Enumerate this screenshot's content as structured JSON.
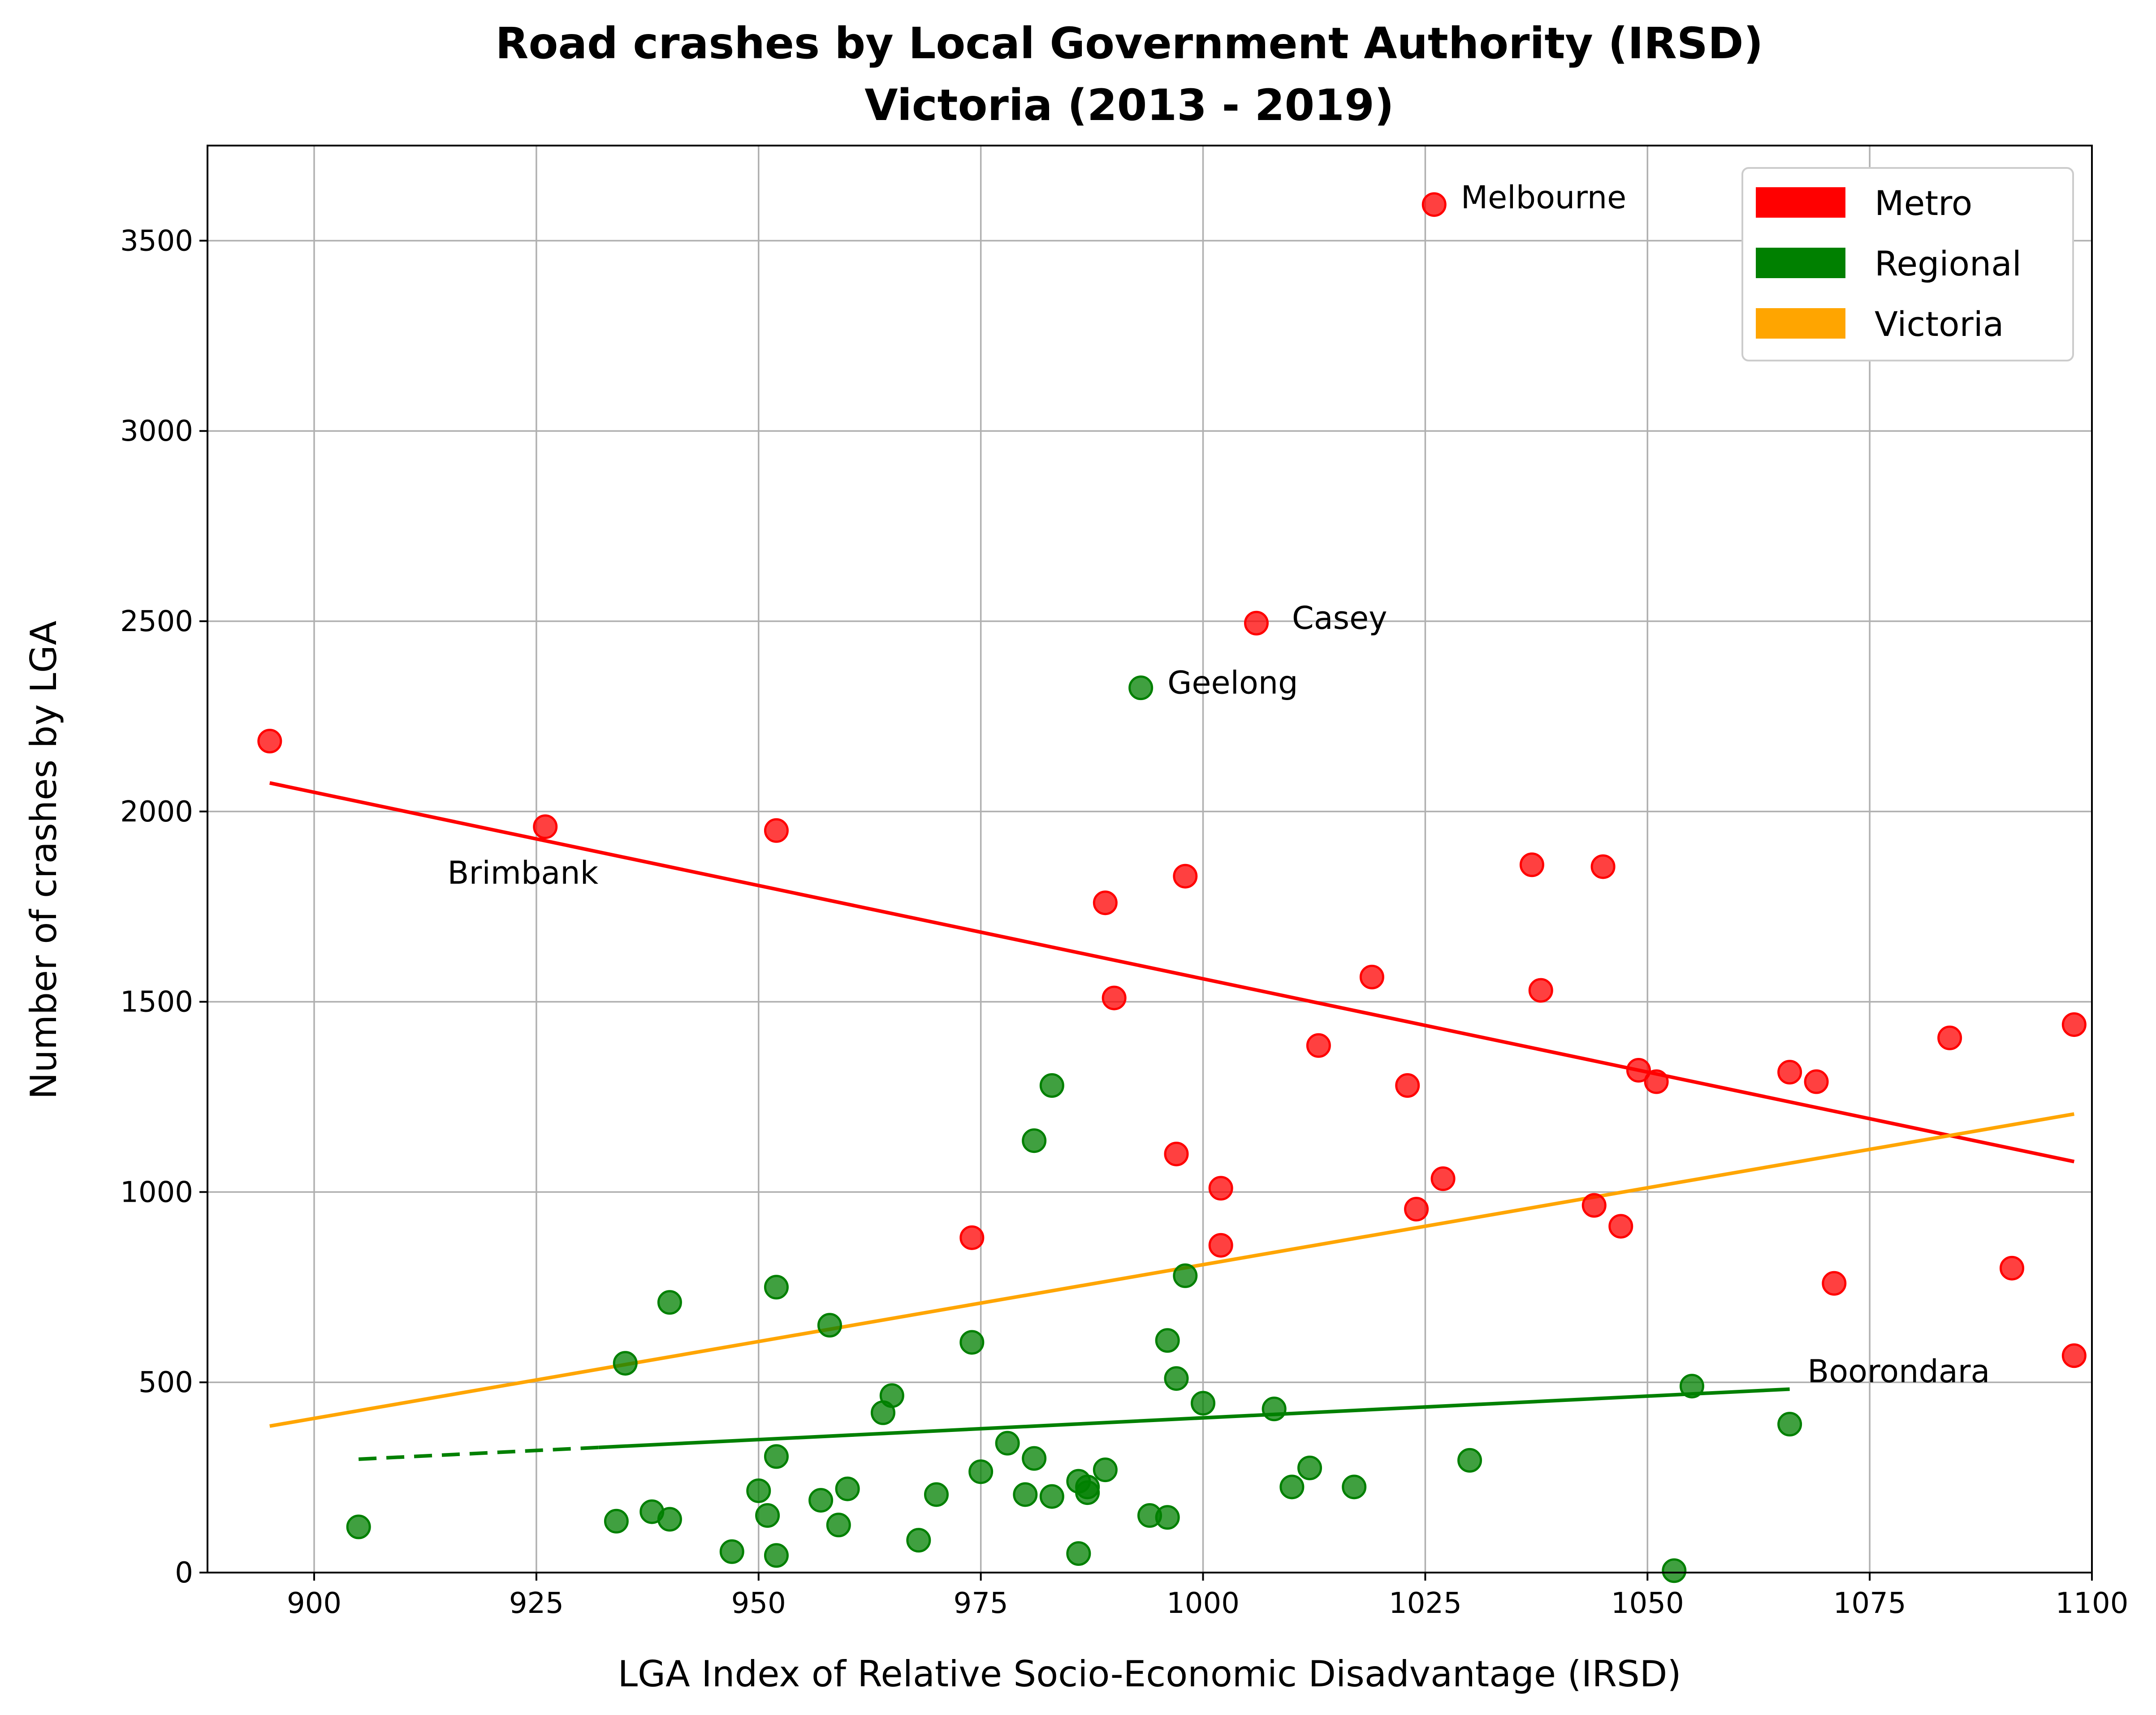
{
  "chart_data": {
    "type": "scatter",
    "title": "Road crashes by Local Government Authority (IRSD)",
    "subtitle": "Victoria (2013 - 2019)",
    "xlabel": "LGA Index of Relative Socio-Economic Disadvantage (IRSD)",
    "ylabel": "Number of crashes by LGA",
    "xlim": [
      888,
      1100
    ],
    "ylim": [
      0,
      3750
    ],
    "xticks": [
      900,
      925,
      950,
      975,
      1000,
      1025,
      1050,
      1075,
      1100
    ],
    "yticks": [
      0,
      500,
      1000,
      1500,
      2000,
      2500,
      3000,
      3500
    ],
    "grid": true,
    "legend_position": "top-right",
    "colors": {
      "Metro": "#ff0000",
      "Regional": "#008000",
      "Victoria": "#ffa500"
    },
    "legend": [
      "Metro",
      "Regional",
      "Victoria"
    ],
    "series": [
      {
        "name": "Metro",
        "color": "#ff0000",
        "points": [
          [
            895,
            2185
          ],
          [
            926,
            1960
          ],
          [
            952,
            1950
          ],
          [
            974,
            880
          ],
          [
            989,
            1760
          ],
          [
            990,
            1510
          ],
          [
            997,
            1100
          ],
          [
            998,
            1830
          ],
          [
            1002,
            1010
          ],
          [
            1002,
            860
          ],
          [
            1006,
            2495
          ],
          [
            1013,
            1385
          ],
          [
            1019,
            1565
          ],
          [
            1023,
            1280
          ],
          [
            1024,
            955
          ],
          [
            1026,
            3595
          ],
          [
            1027,
            1035
          ],
          [
            1037,
            1860
          ],
          [
            1038,
            1530
          ],
          [
            1044,
            965
          ],
          [
            1045,
            1855
          ],
          [
            1047,
            910
          ],
          [
            1049,
            1320
          ],
          [
            1051,
            1290
          ],
          [
            1066,
            1315
          ],
          [
            1069,
            1290
          ],
          [
            1071,
            760
          ],
          [
            1084,
            1405
          ],
          [
            1091,
            800
          ],
          [
            1098,
            1440
          ],
          [
            1098,
            570
          ]
        ]
      },
      {
        "name": "Regional",
        "color": "#008000",
        "points": [
          [
            905,
            120
          ],
          [
            934,
            135
          ],
          [
            935,
            550
          ],
          [
            938,
            160
          ],
          [
            940,
            140
          ],
          [
            940,
            710
          ],
          [
            947,
            55
          ],
          [
            950,
            215
          ],
          [
            951,
            150
          ],
          [
            952,
            305
          ],
          [
            952,
            750
          ],
          [
            952,
            45
          ],
          [
            957,
            190
          ],
          [
            958,
            650
          ],
          [
            959,
            125
          ],
          [
            960,
            220
          ],
          [
            964,
            420
          ],
          [
            965,
            465
          ],
          [
            968,
            85
          ],
          [
            970,
            205
          ],
          [
            974,
            605
          ],
          [
            975,
            265
          ],
          [
            978,
            340
          ],
          [
            980,
            205
          ],
          [
            981,
            300
          ],
          [
            981,
            1135
          ],
          [
            983,
            200
          ],
          [
            983,
            1280
          ],
          [
            986,
            240
          ],
          [
            986,
            50
          ],
          [
            987,
            210
          ],
          [
            987,
            225
          ],
          [
            989,
            270
          ],
          [
            993,
            2325
          ],
          [
            994,
            150
          ],
          [
            996,
            145
          ],
          [
            996,
            610
          ],
          [
            997,
            510
          ],
          [
            998,
            780
          ],
          [
            1000,
            445
          ],
          [
            1008,
            430
          ],
          [
            1010,
            225
          ],
          [
            1012,
            275
          ],
          [
            1017,
            225
          ],
          [
            1030,
            295
          ],
          [
            1053,
            5
          ],
          [
            1055,
            490
          ],
          [
            1066,
            390
          ]
        ]
      }
    ],
    "trendlines": [
      {
        "series": "Metro",
        "color": "#ff0000",
        "x": [
          895,
          1098
        ],
        "y": [
          2075,
          1080
        ]
      },
      {
        "series": "Victoria",
        "color": "#ffa500",
        "x": [
          895,
          1098
        ],
        "y": [
          385,
          1205
        ]
      },
      {
        "series": "Regional",
        "color": "#008000",
        "x": [
          905,
          1066
        ],
        "y": [
          298,
          482
        ],
        "dashed_until_x": 932
      }
    ],
    "annotations": [
      {
        "text": "Melbourne",
        "x": 1029,
        "y": 3585
      },
      {
        "text": "Casey",
        "x": 1010,
        "y": 2480
      },
      {
        "text": "Geelong",
        "x": 996,
        "y": 2310
      },
      {
        "text": "Brimbank",
        "x": 915,
        "y": 1810
      },
      {
        "text": "Boorondara",
        "x": 1068,
        "y": 500
      }
    ]
  }
}
